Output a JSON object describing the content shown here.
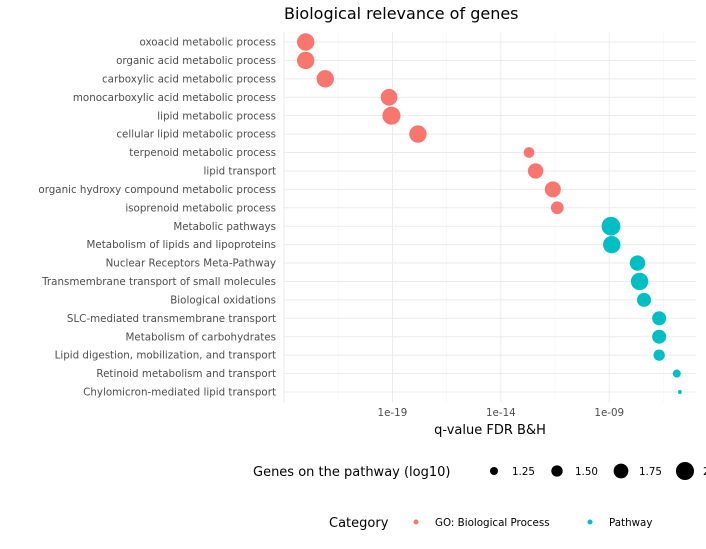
{
  "chart_data": {
    "type": "scatter",
    "title": "Biological relevance of genes",
    "xlabel": "q-value FDR B&H",
    "ylabel": "",
    "x_scale": "log10",
    "xlim": [
      1e-24,
      1e-05
    ],
    "x_ticks": [
      1e-19,
      1e-14,
      1e-09
    ],
    "x_tick_labels": [
      "1e-19",
      "1e-14",
      "1e-09"
    ],
    "grid": true,
    "categories": [
      "oxoacid metabolic process",
      "organic acid metabolic process",
      "carboxylic acid metabolic process",
      "monocarboxylic acid metabolic process",
      "lipid metabolic process",
      "cellular lipid metabolic process",
      "terpenoid metabolic process",
      "lipid transport",
      "organic hydroxy compound metabolic process",
      "isoprenoid metabolic process",
      "Metabolic pathways",
      "Metabolism of lipids and lipoproteins",
      "Nuclear Receptors Meta-Pathway",
      "Transmembrane transport of small molecules",
      "Biological oxidations",
      "SLC-mediated transmembrane transport",
      "Metabolism of carbohydrates",
      "Lipid digestion, mobilization, and transport",
      "Retinoid metabolism and transport",
      "Chylomicron-mediated lipid transport"
    ],
    "series": [
      {
        "name": "GO: Biological Process",
        "color": "#F8766D",
        "points": [
          {
            "label": "oxoacid metabolic process",
            "x": 1e-23,
            "size": 1.95
          },
          {
            "label": "organic acid metabolic process",
            "x": 1e-23,
            "size": 1.95
          },
          {
            "label": "carboxylic acid metabolic process",
            "x": 8e-23,
            "size": 1.95
          },
          {
            "label": "monocarboxylic acid metabolic process",
            "x": 7e-20,
            "size": 1.9
          },
          {
            "label": "lipid metabolic process",
            "x": 9e-20,
            "size": 2.0
          },
          {
            "label": "cellular lipid metabolic process",
            "x": 1.5e-18,
            "size": 1.95
          },
          {
            "label": "terpenoid metabolic process",
            "x": 2e-13,
            "size": 1.45
          },
          {
            "label": "lipid transport",
            "x": 4e-13,
            "size": 1.8
          },
          {
            "label": "organic hydroxy compound metabolic process",
            "x": 2.5e-12,
            "size": 1.85
          },
          {
            "label": "isoprenoid metabolic process",
            "x": 4e-12,
            "size": 1.6
          }
        ]
      },
      {
        "name": "Pathway",
        "color": "#00BFC4",
        "points": [
          {
            "label": "Metabolic pathways",
            "x": 1.2e-09,
            "size": 2.05
          },
          {
            "label": "Metabolism of lipids and lipoproteins",
            "x": 1.3e-09,
            "size": 1.95
          },
          {
            "label": "Nuclear Receptors Meta-Pathway",
            "x": 2e-08,
            "size": 1.8
          },
          {
            "label": "Transmembrane transport of small molecules",
            "x": 2.5e-08,
            "size": 1.95
          },
          {
            "label": "Biological oxidations",
            "x": 4e-08,
            "size": 1.7
          },
          {
            "label": "SLC-mediated transmembrane transport",
            "x": 2e-07,
            "size": 1.7
          },
          {
            "label": "Metabolism of carbohydrates",
            "x": 2e-07,
            "size": 1.7
          },
          {
            "label": "Lipid digestion, mobilization, and transport",
            "x": 2e-07,
            "size": 1.5
          },
          {
            "label": "Retinoid metabolism and transport",
            "x": 1.3e-06,
            "size": 1.25
          },
          {
            "label": "Chylomicron-mediated lipid transport",
            "x": 1.8e-06,
            "size": 0.95
          }
        ]
      }
    ],
    "size_legend": {
      "title": "Genes on the pathway (log10)",
      "values": [
        1.25,
        1.5,
        1.75,
        2.0
      ],
      "labels": [
        "1.25",
        "1.50",
        "1.75",
        "2"
      ],
      "placement": "bottom"
    },
    "color_legend": {
      "title": "Category",
      "entries": [
        "GO: Biological Process",
        "Pathway"
      ],
      "placement": "bottom"
    }
  }
}
